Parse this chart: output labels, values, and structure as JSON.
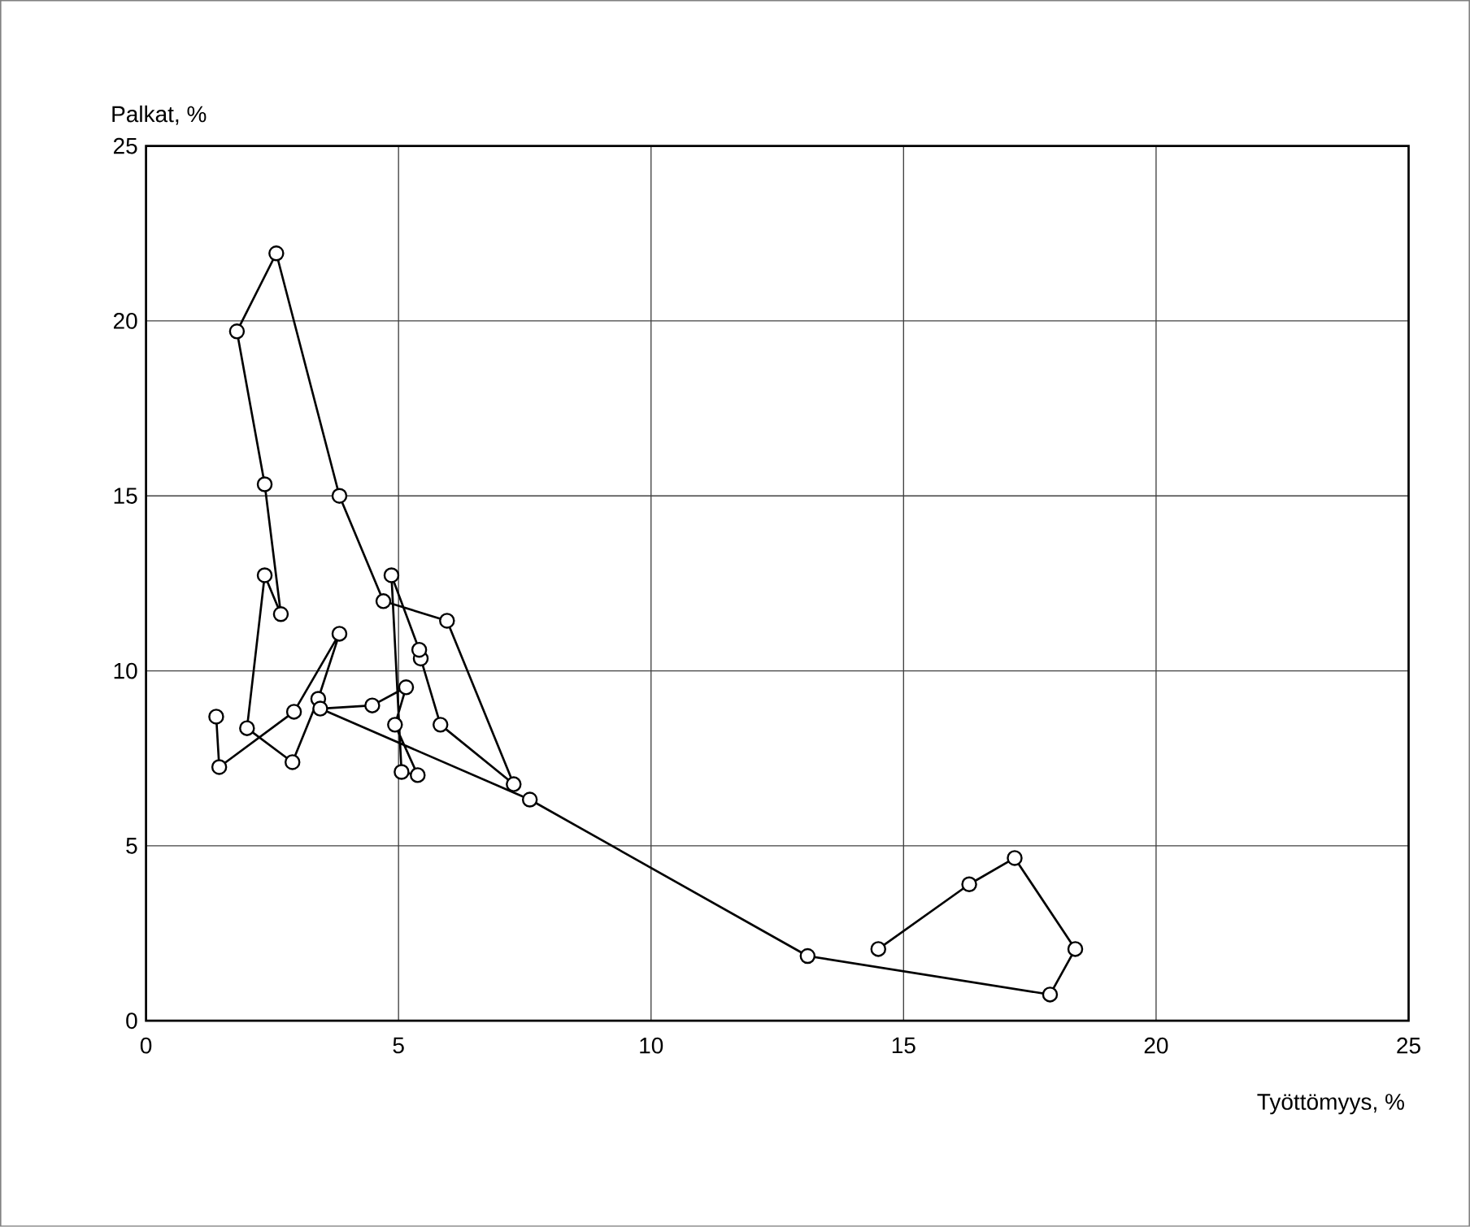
{
  "chart_data": {
    "type": "line",
    "xlabel": "Työttömyys, %",
    "ylabel": "Palkat, %",
    "xlim": [
      0,
      25
    ],
    "ylim": [
      0,
      25
    ],
    "xticks": [
      0,
      5,
      10,
      15,
      20,
      25
    ],
    "yticks": [
      0,
      5,
      10,
      15,
      20,
      25
    ],
    "grid": true,
    "marker": "circle",
    "line_style": "solid",
    "series": [
      {
        "color": "#000000",
        "x": [
          1.39,
          1.45,
          2.93,
          3.83,
          3.41,
          2.9,
          2.0,
          2.35,
          2.67,
          2.35,
          1.8,
          2.58,
          3.83,
          4.7,
          5.96,
          7.28,
          5.83,
          5.44,
          5.41,
          4.86,
          5.06,
          5.38,
          4.93,
          5.15,
          4.48,
          3.45,
          7.6,
          13.1,
          17.9,
          18.4,
          17.2,
          16.3,
          14.5
        ],
        "values": [
          8.69,
          7.25,
          8.83,
          11.06,
          9.2,
          7.39,
          8.36,
          12.73,
          11.62,
          15.33,
          19.7,
          21.93,
          15.0,
          11.99,
          11.43,
          6.76,
          8.46,
          10.35,
          10.6,
          12.73,
          7.11,
          7.02,
          8.46,
          9.53,
          9.01,
          8.92,
          6.32,
          1.85,
          0.75,
          2.05,
          4.65,
          3.9,
          2.05
        ]
      }
    ]
  }
}
